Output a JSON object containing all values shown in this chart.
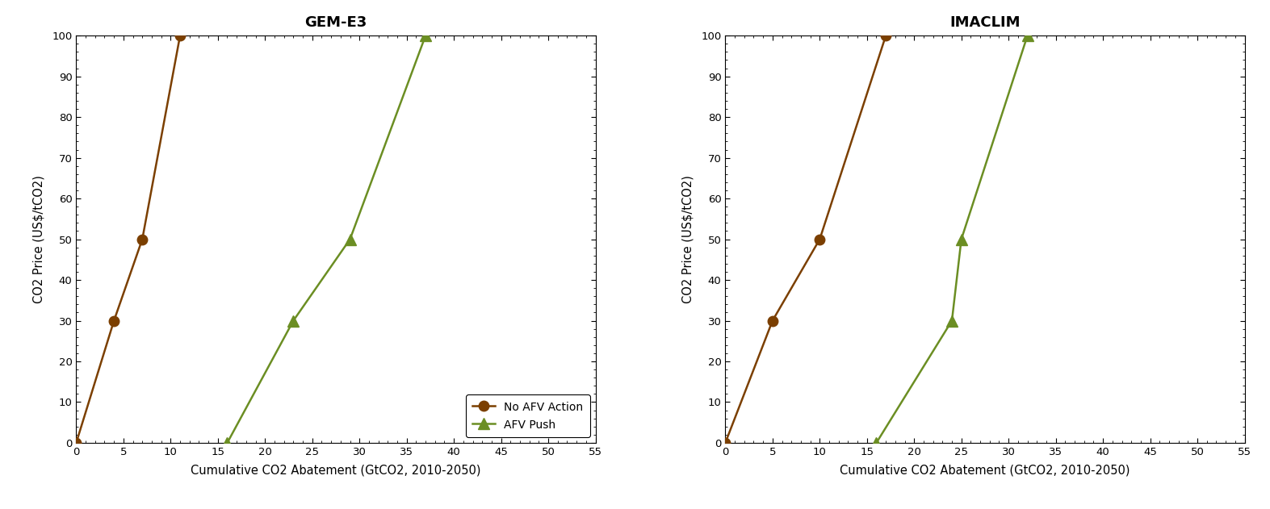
{
  "gem_e3": {
    "title": "GEM-E3",
    "no_afv": {
      "x": [
        0,
        4,
        7,
        11
      ],
      "y": [
        0,
        30,
        50,
        100
      ]
    },
    "afv_push": {
      "x": [
        16,
        23,
        29,
        37
      ],
      "y": [
        0,
        30,
        50,
        100
      ]
    }
  },
  "imaclim": {
    "title": "IMACLIM",
    "no_afv": {
      "x": [
        0,
        5,
        10,
        17
      ],
      "y": [
        0,
        30,
        50,
        100
      ]
    },
    "afv_push": {
      "x": [
        16,
        24,
        25,
        32
      ],
      "y": [
        0,
        30,
        50,
        100
      ]
    }
  },
  "xlabel": "Cumulative CO2 Abatement (GtCO2, 2010-2050)",
  "ylabel": "CO2 Price (US$/tCO2)",
  "xlim": [
    0,
    55
  ],
  "ylim": [
    0,
    100
  ],
  "xticks": [
    0,
    5,
    10,
    15,
    20,
    25,
    30,
    35,
    40,
    45,
    50,
    55
  ],
  "yticks": [
    0,
    10,
    20,
    30,
    40,
    50,
    60,
    70,
    80,
    90,
    100
  ],
  "no_afv_color": "#7B3F00",
  "afv_push_color": "#6B8E23",
  "no_afv_label": "No AFV Action",
  "afv_push_label": "AFV Push",
  "legend_loc": "lower right",
  "background_color": "#FFFFFF",
  "line_width": 1.8,
  "marker_size_circle": 9,
  "marker_size_triangle": 10
}
